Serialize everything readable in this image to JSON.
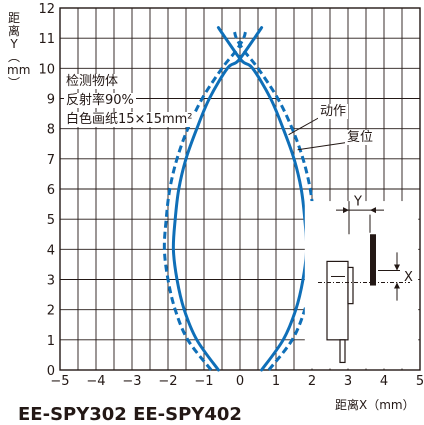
{
  "chart_data": {
    "type": "line",
    "xlabel": "距离X（mm）",
    "ylabel_chars": [
      "距",
      "离",
      "Y",
      "︵",
      "mm",
      "︶"
    ],
    "xlim": [
      -5,
      5
    ],
    "ylim": [
      0,
      12
    ],
    "x_ticks": [
      {
        "value": -5,
        "label": "−5"
      },
      {
        "value": -4,
        "label": "−4"
      },
      {
        "value": -3,
        "label": "−3"
      },
      {
        "value": -2,
        "label": "−2"
      },
      {
        "value": -1,
        "label": "−1"
      },
      {
        "value": 0,
        "label": "0"
      },
      {
        "value": 1,
        "label": "1"
      },
      {
        "value": 2,
        "label": "2"
      },
      {
        "value": 3,
        "label": "3"
      },
      {
        "value": 4,
        "label": "4"
      },
      {
        "value": 5,
        "label": "5"
      }
    ],
    "y_ticks": [
      0,
      1,
      2,
      3,
      4,
      5,
      6,
      7,
      8,
      9,
      10,
      11,
      12
    ],
    "grid": true,
    "condition_lines": [
      "检测物体",
      "反射率90%",
      "白色画纸15×15mm²"
    ],
    "series": [
      {
        "name": "动作",
        "style": "solid",
        "color": "#0f6fb8",
        "curves": [
          [
            [
              0.6,
              0
            ],
            [
              1.2,
              1
            ],
            [
              1.55,
              2
            ],
            [
              1.75,
              3
            ],
            [
              1.85,
              4
            ],
            [
              1.8,
              5
            ],
            [
              1.7,
              6
            ],
            [
              1.5,
              7
            ],
            [
              1.2,
              8
            ],
            [
              0.85,
              9
            ],
            [
              0.35,
              10
            ],
            [
              0.05,
              10.25
            ],
            [
              -0.4,
              11
            ],
            [
              -0.6,
              11.35
            ]
          ],
          [
            [
              -0.6,
              0
            ],
            [
              -1.2,
              1
            ],
            [
              -1.55,
              2
            ],
            [
              -1.75,
              3
            ],
            [
              -1.85,
              4
            ],
            [
              -1.8,
              5
            ],
            [
              -1.7,
              6
            ],
            [
              -1.5,
              7
            ],
            [
              -1.2,
              8
            ],
            [
              -0.85,
              9
            ],
            [
              -0.35,
              10
            ],
            [
              -0.05,
              10.25
            ],
            [
              0.4,
              11
            ],
            [
              0.6,
              11.35
            ]
          ]
        ]
      },
      {
        "name": "复位",
        "style": "dashed",
        "color": "#0f6fb8",
        "curves": [
          [
            [
              0.8,
              0
            ],
            [
              1.45,
              1
            ],
            [
              1.8,
              2
            ],
            [
              2.0,
              3
            ],
            [
              2.1,
              4
            ],
            [
              2.05,
              5
            ],
            [
              1.95,
              6
            ],
            [
              1.75,
              7
            ],
            [
              1.45,
              8
            ],
            [
              1.05,
              9
            ],
            [
              0.5,
              10
            ],
            [
              0.1,
              10.6
            ],
            [
              -0.1,
              11
            ],
            [
              -0.15,
              11.2
            ]
          ],
          [
            [
              -0.8,
              0
            ],
            [
              -1.45,
              1
            ],
            [
              -1.8,
              2
            ],
            [
              -2.0,
              3
            ],
            [
              -2.1,
              4
            ],
            [
              -2.05,
              5
            ],
            [
              -1.95,
              6
            ],
            [
              -1.75,
              7
            ],
            [
              -1.45,
              8
            ],
            [
              -1.05,
              9
            ],
            [
              -0.5,
              10
            ],
            [
              -0.1,
              10.6
            ],
            [
              0.1,
              11
            ],
            [
              0.15,
              11.2
            ]
          ]
        ]
      }
    ],
    "inset_labels": {
      "y": "Y",
      "x": "X"
    }
  },
  "footer_text": "EE-SPY302 EE-SPY402"
}
